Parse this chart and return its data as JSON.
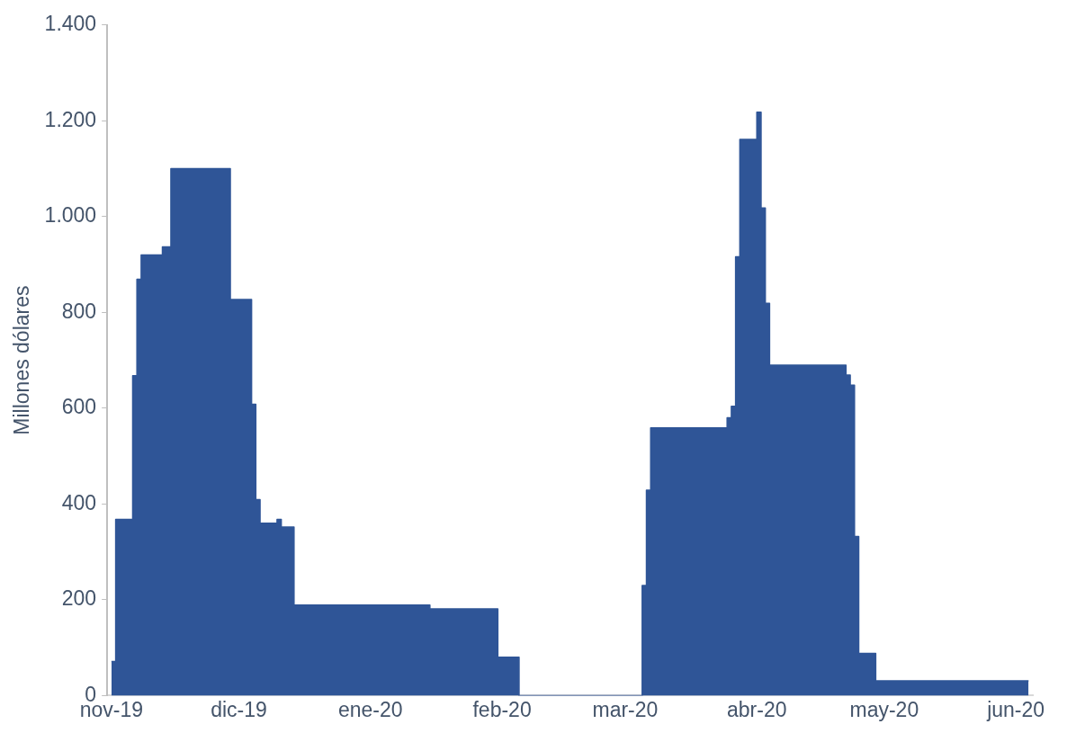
{
  "chart_data": {
    "type": "area",
    "ylabel": "Millones dólares",
    "color": "#2f5597",
    "x": [
      "2019-11-01",
      "2019-11-02",
      "2019-11-02",
      "2019-11-06",
      "2019-11-06",
      "2019-11-07",
      "2019-11-07",
      "2019-11-08",
      "2019-11-08",
      "2019-11-13",
      "2019-11-13",
      "2019-11-15",
      "2019-11-15",
      "2019-11-29",
      "2019-11-29",
      "2019-12-04",
      "2019-12-04",
      "2019-12-05",
      "2019-12-05",
      "2019-12-06",
      "2019-12-06",
      "2019-12-10",
      "2019-12-10",
      "2019-12-11",
      "2019-12-11",
      "2019-12-14",
      "2019-12-14",
      "2020-01-15",
      "2020-01-15",
      "2020-01-31",
      "2020-01-31",
      "2020-02-05",
      "2020-02-05",
      "2020-03-05",
      "2020-03-05",
      "2020-03-06",
      "2020-03-06",
      "2020-03-07",
      "2020-03-07",
      "2020-03-25",
      "2020-03-25",
      "2020-03-26",
      "2020-03-26",
      "2020-03-27",
      "2020-03-27",
      "2020-03-28",
      "2020-03-28",
      "2020-04-01",
      "2020-04-01",
      "2020-04-02",
      "2020-04-02",
      "2020-04-03",
      "2020-04-03",
      "2020-04-04",
      "2020-04-04",
      "2020-04-22",
      "2020-04-22",
      "2020-04-23",
      "2020-04-23",
      "2020-04-24",
      "2020-04-24",
      "2020-04-25",
      "2020-04-25",
      "2020-04-29",
      "2020-04-29",
      "2020-06-04"
    ],
    "values": [
      71,
      71,
      368,
      368,
      668,
      668,
      869,
      869,
      920,
      920,
      937,
      937,
      1100,
      1100,
      827,
      827,
      608,
      608,
      409,
      409,
      360,
      360,
      368,
      368,
      352,
      352,
      189,
      189,
      181,
      181,
      80,
      80,
      0,
      0,
      230,
      230,
      429,
      429,
      559,
      559,
      580,
      580,
      604,
      604,
      916,
      916,
      1161,
      1161,
      1218,
      1218,
      1018,
      1018,
      819,
      819,
      690,
      690,
      669,
      669,
      648,
      648,
      332,
      332,
      88,
      88,
      31,
      31
    ],
    "xlim": [
      "2019-10-31",
      "2020-06-05"
    ],
    "xticks": [
      {
        "value": "2019-11-01",
        "label": "nov-19"
      },
      {
        "value": "2019-12-01",
        "label": "dic-19"
      },
      {
        "value": "2020-01-01",
        "label": "ene-20"
      },
      {
        "value": "2020-02-01",
        "label": "feb-20"
      },
      {
        "value": "2020-03-01",
        "label": "mar-20"
      },
      {
        "value": "2020-04-01",
        "label": "abr-20"
      },
      {
        "value": "2020-05-01",
        "label": "may-20"
      },
      {
        "value": "2020-06-01",
        "label": "jun-20"
      }
    ],
    "ylim": [
      0,
      1400
    ],
    "yticks": [
      0,
      200,
      400,
      600,
      800,
      {
        "value": 1000,
        "label": "1.000"
      },
      {
        "value": 1200,
        "label": "1.200"
      },
      {
        "value": 1400,
        "label": "1.400"
      }
    ]
  }
}
